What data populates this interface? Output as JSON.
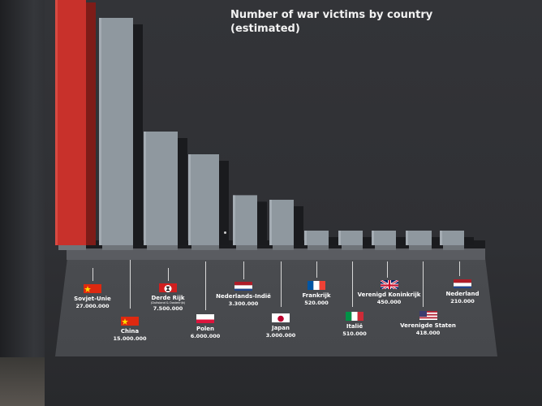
{
  "title_line1": "Number of war victims by country",
  "title_line2": "(estimated)",
  "colors": {
    "highlight_bar": "#c8312b",
    "bar": "#8f989f",
    "text": "#ffffff"
  },
  "chart_data": {
    "type": "bar",
    "title": "Number of war victims by country (estimated)",
    "categories": [
      "Sovjet-Unie",
      "China",
      "Derde Rijk",
      "Polen",
      "Nederlands-Indië",
      "Japan",
      "Frankrijk",
      "Italië",
      "Verenigd Koninkrijk",
      "Verenigde Staten",
      "Nederland"
    ],
    "values": [
      27000000,
      15000000,
      7500000,
      6000000,
      3300000,
      3000000,
      520000,
      510000,
      450000,
      418000,
      210000
    ],
    "value_labels": [
      "27.000.000",
      "15.000.000",
      "7.500.000",
      "6.000.000",
      "3.300.000",
      "3.000.000",
      "520.000",
      "510.000",
      "450.000",
      "418.000",
      "210.000"
    ],
    "sublabels": {
      "Derde Rijk": "(Duitsland & Oostenrijk)"
    },
    "highlight_category": "Sovjet-Unie"
  },
  "labels": [
    {
      "name": "Sovjet-Unie",
      "value": "27.000.000",
      "flag": "china-flag-icon"
    },
    {
      "name": "China",
      "value": "15.000.000",
      "flag": "china-flag-icon"
    },
    {
      "name": "Derde Rijk",
      "sub": "(Duitsland & Oostenrijk)",
      "value": "7.500.000",
      "flag": "third-reich-flag-icon"
    },
    {
      "name": "Polen",
      "value": "6.000.000",
      "flag": "poland-flag-icon"
    },
    {
      "name": "Nederlands-Indië",
      "value": "3.300.000",
      "flag": "netherlands-flag-icon"
    },
    {
      "name": "Japan",
      "value": "3.000.000",
      "flag": "japan-flag-icon"
    },
    {
      "name": "Frankrijk",
      "value": "520.000",
      "flag": "france-flag-icon"
    },
    {
      "name": "Italië",
      "value": "510.000",
      "flag": "italy-flag-icon"
    },
    {
      "name": "Verenigd Koninkrijk",
      "value": "450.000",
      "flag": "uk-flag-icon"
    },
    {
      "name": "Verenigde Staten",
      "value": "418.000",
      "flag": "usa-flag-icon"
    },
    {
      "name": "Nederland",
      "value": "210.000",
      "flag": "netherlands-flag-icon"
    }
  ]
}
